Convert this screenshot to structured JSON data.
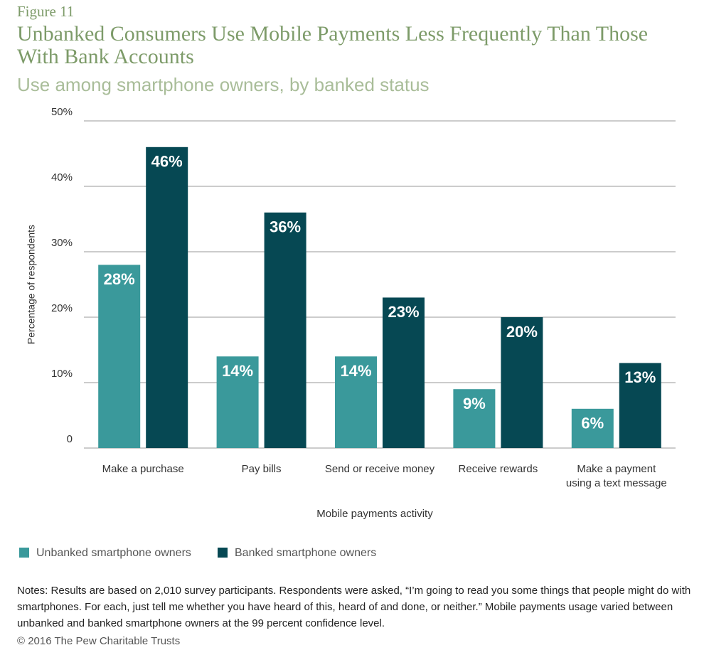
{
  "figure_label": "Figure 11",
  "chart_data": {
    "type": "bar",
    "title": "Unbanked Consumers Use Mobile Payments Less Frequently Than Those With Bank Accounts",
    "subtitle": "Use among smartphone owners, by banked status",
    "x_label": "Mobile payments activity",
    "y_label": "Percentage of respondents",
    "categories": [
      "Make a purchase",
      "Pay bills",
      "Send or receive money",
      "Receive rewards",
      "Make a payment\nusing a text message"
    ],
    "series": [
      {
        "name": "Unbanked smartphone owners",
        "color": "#3a999b",
        "values": [
          28,
          14,
          14,
          9,
          6
        ],
        "value_labels": [
          "28%",
          "14%",
          "14%",
          "9%",
          "6%"
        ]
      },
      {
        "name": "Banked smartphone owners",
        "color": "#064853",
        "values": [
          46,
          36,
          23,
          20,
          13
        ],
        "value_labels": [
          "46%",
          "36%",
          "23%",
          "20%",
          "13%"
        ]
      }
    ],
    "ylim": [
      0,
      50
    ],
    "yticks": [
      0,
      {
        "value": 10,
        "label": "10%"
      },
      {
        "value": 20,
        "label": "20%"
      },
      {
        "value": 30,
        "label": "30%"
      },
      {
        "value": 40,
        "label": "40%"
      },
      {
        "value": 50,
        "label": "50%"
      }
    ],
    "grid": true
  },
  "notes": "Notes: Results are based on 2,010 survey participants. Respondents were asked, “I’m going to read you some things that people might do with smartphones. For each, just tell me whether you have heard of this, heard of and done, or neither.” Mobile payments usage varied between unbanked and banked smartphone owners at the 99 percent confidence level.",
  "copyright": "© 2016 The Pew Charitable Trusts"
}
